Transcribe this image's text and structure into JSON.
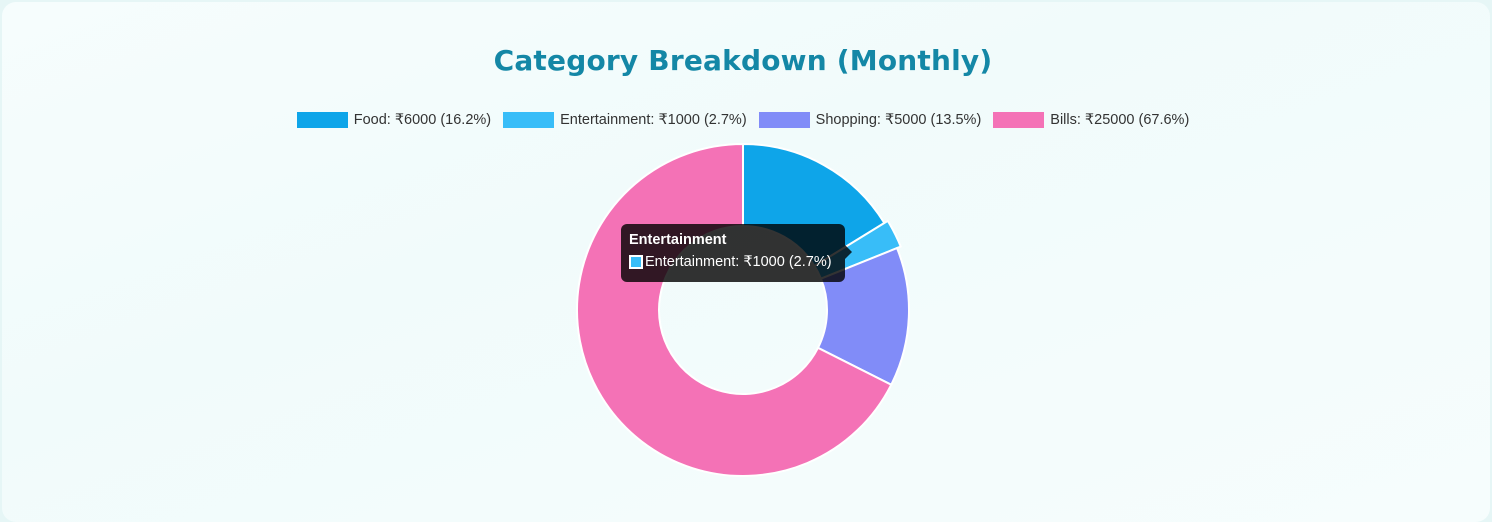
{
  "title": "Category Breakdown (Monthly)",
  "legend": [
    {
      "label": "Food: ₹6000 (16.2%)",
      "color": "#0ea5e9"
    },
    {
      "label": "Entertainment: ₹1000 (2.7%)",
      "color": "#38bdf8"
    },
    {
      "label": "Shopping: ₹5000 (13.5%)",
      "color": "#818cf8"
    },
    {
      "label": "Bills: ₹25000 (67.6%)",
      "color": "#f472b6"
    }
  ],
  "tooltip": {
    "title": "Entertainment",
    "label": "Entertainment: ₹1000 (2.7%)",
    "color": "#38bdf8"
  },
  "chart_data": {
    "type": "pie",
    "variant": "doughnut",
    "title": "Category Breakdown (Monthly)",
    "legend_position": "top",
    "categories": [
      "Food",
      "Entertainment",
      "Shopping",
      "Bills"
    ],
    "values": [
      6000,
      1000,
      5000,
      25000
    ],
    "percentages": [
      16.2,
      2.7,
      13.5,
      67.6
    ],
    "colors": [
      "#0ea5e9",
      "#38bdf8",
      "#818cf8",
      "#f472b6"
    ],
    "highlighted": "Entertainment"
  }
}
